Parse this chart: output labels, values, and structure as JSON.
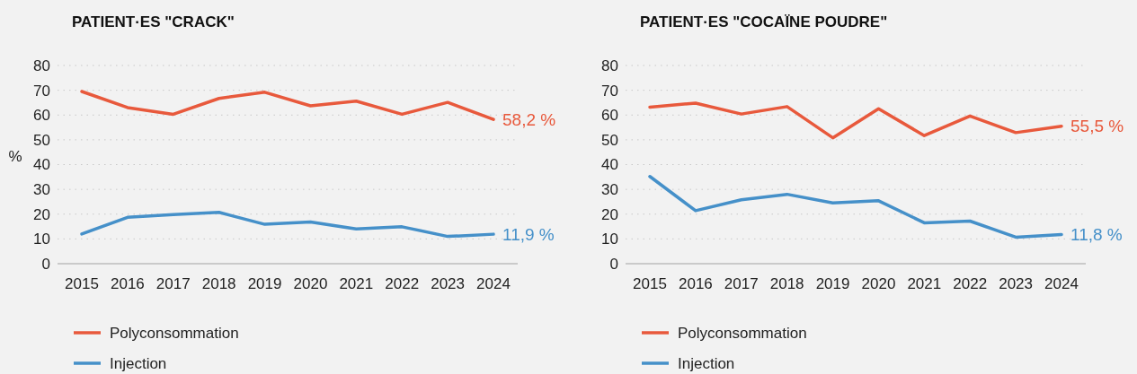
{
  "chart_data": [
    {
      "type": "line",
      "title": "PATIENT·ES \"CRACK\"",
      "ylabel": "%",
      "categories": [
        "2015",
        "2016",
        "2017",
        "2018",
        "2019",
        "2020",
        "2021",
        "2022",
        "2023",
        "2024"
      ],
      "ylim": [
        0,
        80
      ],
      "yticks": [
        0,
        10,
        20,
        30,
        40,
        50,
        60,
        70,
        80
      ],
      "grid": "y",
      "legend": "bottom left",
      "series": [
        {
          "name": "Polyconsommation",
          "color": "#e8593c",
          "values": [
            69.5,
            63,
            60.3,
            66.7,
            69.2,
            63.7,
            65.6,
            60.3,
            65.1,
            58.2
          ],
          "value_labels": [
            null,
            null,
            null,
            null,
            null,
            null,
            null,
            null,
            null,
            "58,2 %"
          ]
        },
        {
          "name": "Injection",
          "color": "#4590c9",
          "values": [
            12,
            18.7,
            19.8,
            20.7,
            15.9,
            16.8,
            14,
            14.9,
            11,
            11.9
          ],
          "value_labels": [
            null,
            null,
            null,
            null,
            null,
            null,
            null,
            null,
            null,
            "11,9 %"
          ]
        }
      ]
    },
    {
      "type": "line",
      "title": "PATIENT·ES \"COCAÏNE POUDRE\"",
      "categories": [
        "2015",
        "2016",
        "2017",
        "2018",
        "2019",
        "2020",
        "2021",
        "2022",
        "2023",
        "2024"
      ],
      "ylim": [
        0,
        80
      ],
      "yticks": [
        0,
        10,
        20,
        30,
        40,
        50,
        60,
        70,
        80
      ],
      "grid": "y",
      "legend": "bottom left",
      "series": [
        {
          "name": "Polyconsommation",
          "color": "#e8593c",
          "values": [
            63.2,
            64.8,
            60.4,
            63.4,
            50.8,
            62.5,
            51.7,
            59.6,
            52.9,
            55.5
          ],
          "value_labels": [
            null,
            null,
            null,
            null,
            null,
            null,
            null,
            null,
            null,
            "55,5 %"
          ]
        },
        {
          "name": "Injection",
          "color": "#4590c9",
          "values": [
            35.2,
            21.4,
            25.8,
            28,
            24.5,
            25.4,
            16.5,
            17.2,
            10.7,
            11.8
          ],
          "value_labels": [
            null,
            null,
            null,
            null,
            null,
            null,
            null,
            null,
            null,
            "11,8 %"
          ]
        }
      ]
    }
  ]
}
